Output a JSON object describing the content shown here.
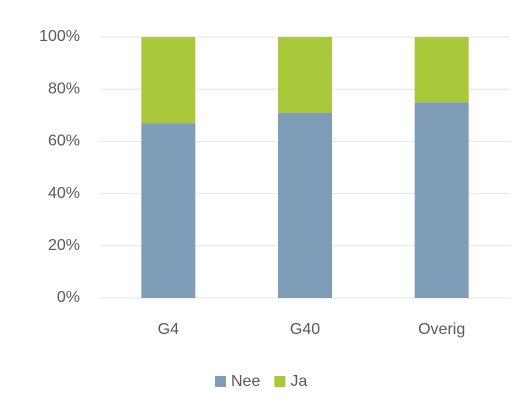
{
  "chart_data": {
    "type": "stacked_bar",
    "categories": [
      "G4",
      "G40",
      "Overig"
    ],
    "series": [
      {
        "name": "Nee",
        "color": "#7f9db9",
        "values": [
          67,
          71,
          75
        ]
      },
      {
        "name": "Ja",
        "color": "#a9c93b",
        "values": [
          33,
          29,
          25
        ]
      }
    ],
    "ylim": [
      0,
      100
    ],
    "yticks": [
      {
        "value": 0,
        "label": "0%"
      },
      {
        "value": 20,
        "label": "20%"
      },
      {
        "value": 40,
        "label": "40%"
      },
      {
        "value": 60,
        "label": "60%"
      },
      {
        "value": 80,
        "label": "80%"
      },
      {
        "value": 100,
        "label": "100%"
      }
    ],
    "grid": true,
    "legend": "bottom"
  }
}
